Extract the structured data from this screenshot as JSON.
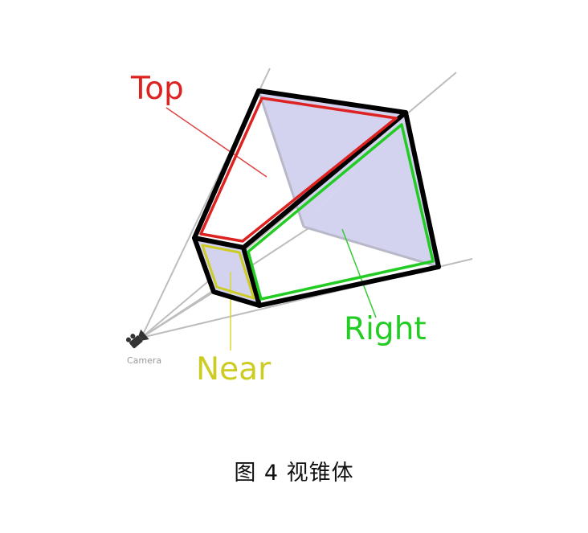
{
  "labels": {
    "top": "Top",
    "right": "Right",
    "near": "Near",
    "camera": "Camera"
  },
  "caption": "图 4 视锥体",
  "colors": {
    "top": "#dd2222",
    "right": "#22cc22",
    "near": "#cccc22",
    "frustum_outline": "#000000",
    "face_fill": "#d3d3f0",
    "guide_lines": "#bbbbbb"
  }
}
